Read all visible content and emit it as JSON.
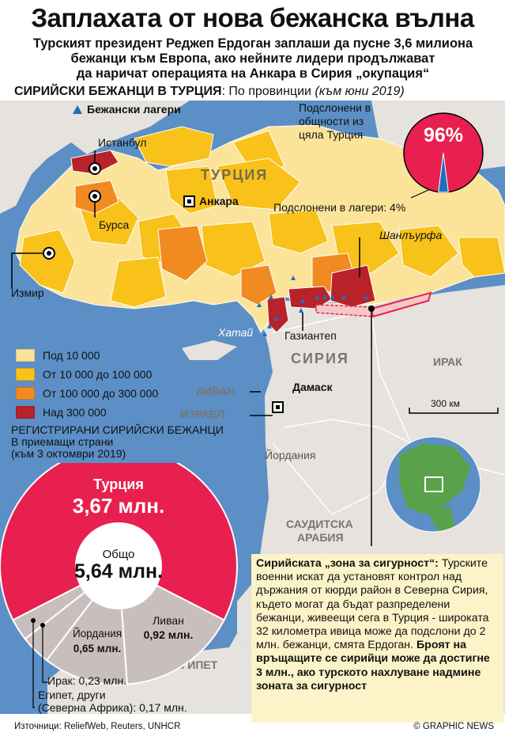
{
  "header": {
    "title": "Заплахата от нова бежанска вълна",
    "subtitle_lines": [
      "Турският президент Реджеп Ердоган заплаши да пусне 3,6 милиона",
      "бежанци към Европа, ако нейните лидери продължават",
      "да наричат операцията на Анкара в Сирия „окупация“"
    ]
  },
  "map_section": {
    "title_bold": "СИРИЙСКИ БЕЖАНЦИ В ТУРЦИЯ",
    "title_rest": ": По провинции ",
    "title_date": "(към юни 2019)",
    "camps_label": "Бежански лагери",
    "community_label_lines": [
      "Подслонени в",
      "общности из",
      "цяла Турция"
    ],
    "community_percent": "96%",
    "camps_percent_label": "Подслонени в лагери: 4%",
    "community_share": 0.96,
    "camps_share": 0.04
  },
  "map_labels": {
    "turkey": "ТУРЦИЯ",
    "syria": "СИРИЯ",
    "iraq": "ИРАК",
    "lebanon": "ЛИВАН",
    "israel": "ИЗРАЕЛ",
    "jordan": "Йордания",
    "saudi_lines": [
      "САУДИТСКА",
      "АРАБИЯ"
    ],
    "egypt": "ЕГИПЕТ",
    "istanbul": "Истанбул",
    "bursa": "Бурса",
    "izmir": "Измир",
    "ankara": "Анкара",
    "sanliurfa": "Шанлъурфа",
    "hatay": "Хатай",
    "gaziantep": "Газиантеп",
    "damascus": "Дамаск",
    "scale": "300 км"
  },
  "legend": {
    "items": [
      {
        "label": "Под 10 000",
        "color": "#fbe39a"
      },
      {
        "label": "От 10 000 до 100 000",
        "color": "#f9c21a"
      },
      {
        "label": "От 100 000 до 300 000",
        "color": "#f28a22"
      },
      {
        "label": "Над 300 000",
        "color": "#b8222a"
      }
    ]
  },
  "registered": {
    "title_lines": [
      "РЕГИСТРИРАНИ СИРИЙСКИ БЕЖАНЦИ",
      "В приемащи страни",
      "(към 3 октомври 2019)"
    ],
    "turkey_label": "Турция",
    "turkey_value": "3,67 млн.",
    "total_label": "Общо",
    "total_value": "5,64 млн.",
    "lebanon_label": "Ливан",
    "lebanon_value": "0,92 млн.",
    "jordan_label": "Йордания",
    "jordan_value": "0,65 млн.",
    "iraq_label": "Ирак: 0,23 млн.",
    "egypt_lines": [
      "Египет, други",
      "(Северна Африка): 0,17 млн."
    ]
  },
  "chart_data": {
    "type": "pie",
    "title": "РЕГИСТРИРАНИ СИРИЙСКИ БЕЖАНЦИ",
    "subtitle": "В приемащи страни (към 3 октомври 2019)",
    "unit": "млн.",
    "total": 5.64,
    "series": [
      {
        "name": "Турция",
        "value": 3.67,
        "color": "#e8204f"
      },
      {
        "name": "Ливан",
        "value": 0.92,
        "color": "#c9bebe"
      },
      {
        "name": "Йордания",
        "value": 0.65,
        "color": "#c9bebe"
      },
      {
        "name": "Ирак",
        "value": 0.23,
        "color": "#c9bebe"
      },
      {
        "name": "Египет, други (Северна Африка)",
        "value": 0.17,
        "color": "#c9bebe"
      }
    ]
  },
  "safe_zone": {
    "heading": "Сирийската „зона за сигурност“:",
    "body": "Турските военни искат да установят контрол над държания от кюрди район в Северна Сирия, където могат да бъдат разпределени бежанци, живеещи сега в Турция - широката 32 километра ивица може да подслони до 2 млн. бежанци, смята Ердоган.",
    "bold_end": "Броят на връщащите се сирийци може да достигне 3 млн., ако турското нахлуване надмине зоната за сигурност"
  },
  "footer": {
    "sources": "Източници: ReliefWeb, Reuters, UNHCR",
    "credit": "© GRAPHIC NEWS"
  },
  "colors": {
    "sea": "#5b8fc6",
    "land": "#e6e2dd",
    "accent": "#e8204f",
    "camp": "#1e6fc0"
  }
}
